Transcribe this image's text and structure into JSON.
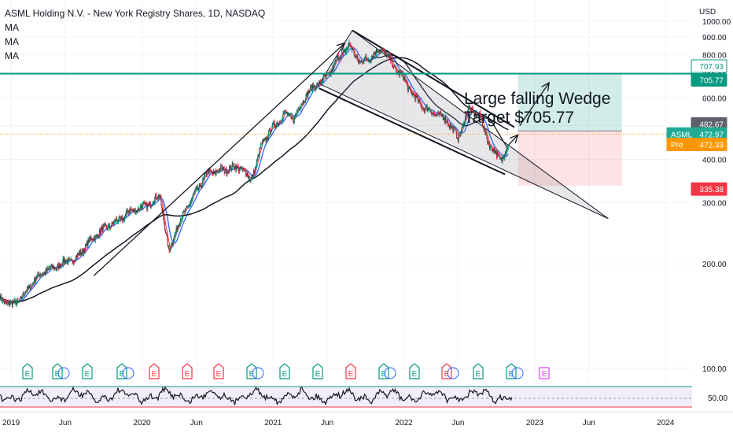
{
  "header": {
    "title": "ASML Holding N.V. - New York Registry Shares, 1D, NASDAQ",
    "indicators": [
      "MA",
      "MA",
      "MA"
    ]
  },
  "currency": "USD",
  "annotation": {
    "line1": "Large falling Wedge",
    "line2": "Target $705.77"
  },
  "tags": [
    {
      "id": "target",
      "value": "707.93",
      "bg": "#ffffff",
      "fg": "#089981",
      "border": "#089981"
    },
    {
      "id": "line",
      "value": "705.77",
      "bg": "#089981",
      "fg": "#ffffff"
    },
    {
      "id": "entry",
      "value": "482.67",
      "bg": "#5d606b",
      "fg": "#ffffff"
    },
    {
      "id": "last",
      "label": "ASML",
      "value": "472.97",
      "bg": "#22ab94",
      "fg": "#ffffff"
    },
    {
      "id": "pre",
      "label": "Pre",
      "value": "472.33",
      "bg": "#ff9800",
      "fg": "#ffffff"
    },
    {
      "id": "stop",
      "value": "335.38",
      "bg": "#f23645",
      "fg": "#ffffff"
    }
  ],
  "rsi_label": "50.00",
  "earnings_letter": "E",
  "chart_data": {
    "type": "line",
    "title": "ASML Holding N.V. - New York Registry Shares, 1D, NASDAQ",
    "ylabel": "USD",
    "y_scale": "log",
    "ylim": [
      92,
      1150
    ],
    "y_ticks": [
      100,
      200,
      300,
      400,
      500,
      600,
      700,
      800,
      900,
      1000
    ],
    "y_tick_labels": [
      "100.00",
      "200.00",
      "300.00",
      "400.00",
      "500.00",
      "600.00",
      "700.00",
      "800.00",
      "900.00",
      "1000.00"
    ],
    "x_range": [
      "2018-12-01",
      "2024-03-15"
    ],
    "x_ticks": [
      "2019-01-01",
      "2019-06-01",
      "2020-01-01",
      "2020-06-01",
      "2021-01-01",
      "2021-06-01",
      "2022-01-01",
      "2022-06-01",
      "2023-01-01",
      "2023-06-01",
      "2024-01-01"
    ],
    "x_tick_labels": [
      "2019",
      "Jun",
      "2020",
      "Jun",
      "2021",
      "Jun",
      "2022",
      "Jun",
      "2023",
      "Jun",
      "2024"
    ],
    "series": [
      {
        "x": [
          "2018-12-01",
          "2019-01-01",
          "2019-02-01",
          "2019-03-01",
          "2019-04-01",
          "2019-05-01",
          "2019-06-01",
          "2019-07-01",
          "2019-08-01",
          "2019-09-01",
          "2019-10-01",
          "2019-11-01",
          "2019-12-01",
          "2020-01-01",
          "2020-02-01",
          "2020-02-20",
          "2020-03-16",
          "2020-04-01",
          "2020-05-01",
          "2020-06-01",
          "2020-07-01",
          "2020-08-01",
          "2020-09-01",
          "2020-10-01",
          "2020-10-30",
          "2020-11-15",
          "2020-12-01",
          "2021-01-01",
          "2021-02-01",
          "2021-03-01",
          "2021-04-01",
          "2021-05-01",
          "2021-06-01",
          "2021-07-01",
          "2021-08-01",
          "2021-09-01",
          "2021-10-01",
          "2021-11-01",
          "2021-12-01",
          "2022-01-01",
          "2022-02-01",
          "2022-03-01",
          "2022-04-01",
          "2022-05-01",
          "2022-06-01",
          "2022-07-01",
          "2022-08-01",
          "2022-09-01",
          "2022-10-01",
          "2022-10-20"
        ],
        "y": [
          160,
          152,
          160,
          177,
          190,
          195,
          203,
          207,
          228,
          245,
          258,
          268,
          285,
          290,
          302,
          318,
          215,
          245,
          285,
          323,
          365,
          370,
          377,
          380,
          350,
          385,
          445,
          495,
          540,
          525,
          610,
          655,
          690,
          780,
          850,
          760,
          790,
          835,
          750,
          680,
          600,
          560,
          540,
          520,
          460,
          560,
          530,
          430,
          400,
          440
        ]
      }
    ],
    "horizontal_line": 705.77,
    "position": {
      "target": 707.93,
      "entry": 482.67,
      "stop": 335.38
    },
    "last_price": 472.97,
    "premarket_price": 472.33
  }
}
